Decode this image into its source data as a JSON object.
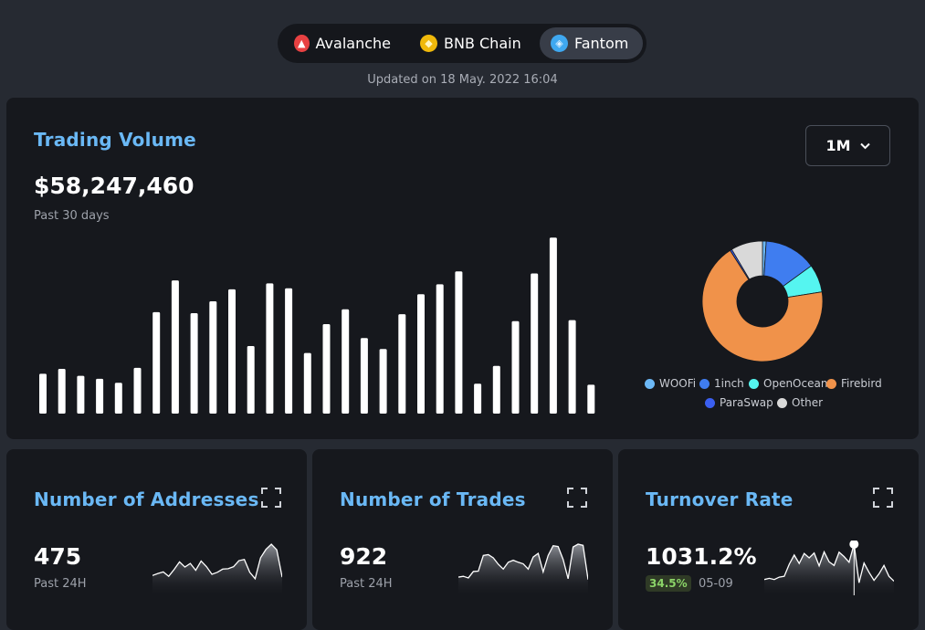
{
  "chains": [
    {
      "name": "Avalanche",
      "icon": "avalanche-icon",
      "color": "#e84142",
      "active": false
    },
    {
      "name": "BNB Chain",
      "icon": "bnb-icon",
      "color": "#f0b90b",
      "active": false
    },
    {
      "name": "Fantom",
      "icon": "fantom-icon",
      "color": "#3fa8f0",
      "active": true
    }
  ],
  "updated": "Updated on 18 May. 2022 16:04",
  "trading": {
    "title": "Trading Volume",
    "value": "$58,247,460",
    "subtitle": "Past 30 days",
    "period": "1M"
  },
  "chart_data": [
    {
      "type": "bar",
      "values": [
        40,
        45,
        38,
        35,
        31,
        46,
        102,
        134,
        101,
        113,
        125,
        68,
        131,
        126,
        61,
        90,
        105,
        76,
        65,
        100,
        120,
        130,
        143,
        30,
        48,
        93,
        141,
        177,
        94,
        29
      ]
    },
    {
      "type": "pie",
      "labels": [
        "WOOFi",
        "1inch",
        "OpenOcean",
        "Firebird",
        "ParaSwap",
        "Other"
      ],
      "values": [
        1.0,
        14.0,
        7.5,
        68.5,
        0.5,
        8.5
      ],
      "colors": [
        "#6cb8f6",
        "#3f7df0",
        "#55f5f0",
        "#f0924a",
        "#3b5ff0",
        "#d9d9d9"
      ]
    }
  ],
  "cards": [
    {
      "title": "Number of Addresses",
      "value": "475",
      "sub": "Past 24H",
      "spark": [
        0.22,
        0.27,
        0.31,
        0.2,
        0.37,
        0.56,
        0.43,
        0.52,
        0.35,
        0.58,
        0.44,
        0.25,
        0.3,
        0.38,
        0.39,
        0.44,
        0.59,
        0.62,
        0.3,
        0.14,
        0.66,
        0.87,
        1.0,
        0.86,
        0.18
      ]
    },
    {
      "title": "Number of Trades",
      "value": "922",
      "sub": "Past 24H",
      "spark": [
        0.18,
        0.2,
        0.16,
        0.32,
        0.33,
        0.72,
        0.74,
        0.66,
        0.5,
        0.38,
        0.55,
        0.6,
        0.55,
        0.51,
        0.38,
        0.68,
        0.77,
        0.31,
        0.72,
        0.96,
        0.94,
        0.62,
        0.14,
        0.93,
        1.0,
        0.97,
        0.12
      ]
    },
    {
      "title": "Turnover Rate",
      "value": "1031.2%",
      "badge": "34.5%",
      "date": "05-09",
      "spark": [
        0.12,
        0.15,
        0.12,
        0.18,
        0.2,
        0.5,
        0.73,
        0.52,
        0.77,
        0.66,
        0.78,
        0.46,
        0.81,
        0.56,
        0.47,
        0.8,
        0.69,
        0.55,
        1.0,
        0.04,
        0.53,
        0.3,
        0.1,
        0.26,
        0.47,
        0.2,
        0.08
      ]
    }
  ]
}
